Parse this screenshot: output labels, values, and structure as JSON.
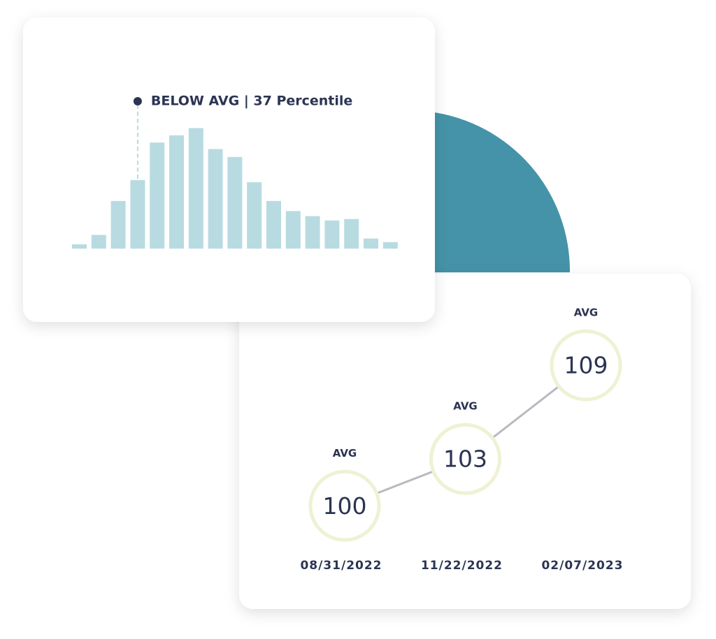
{
  "chart_data": [
    {
      "type": "bar",
      "annotation": "BELOW AVG | 37 Percentile",
      "categories": [
        null,
        null,
        null,
        null,
        null,
        null,
        null,
        null,
        null,
        null,
        null,
        null,
        null,
        null,
        null,
        null,
        null
      ],
      "values": [
        6,
        19,
        66,
        95,
        147,
        157,
        167,
        138,
        127,
        92,
        66,
        52,
        45,
        39,
        41,
        14,
        9
      ],
      "color": "#b8dbe2",
      "ylim": [
        0,
        180
      ]
    },
    {
      "type": "line",
      "categories": [
        "08/31/2022",
        "11/22/2022",
        "02/07/2023"
      ],
      "values": [
        100,
        103,
        109
      ],
      "point_labels": [
        "AVG",
        "AVG",
        "AVG"
      ],
      "color": "#b9b9c0",
      "ylim": [
        95,
        115
      ]
    }
  ]
}
